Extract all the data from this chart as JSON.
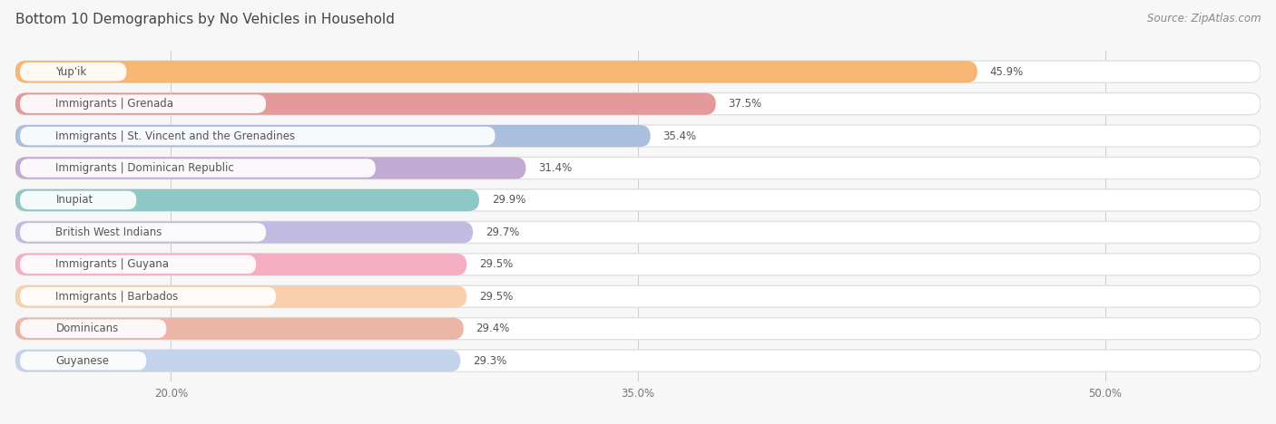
{
  "title": "Bottom 10 Demographics by No Vehicles in Household",
  "source": "Source: ZipAtlas.com",
  "categories": [
    "Yup'ik",
    "Immigrants | Grenada",
    "Immigrants | St. Vincent and the Grenadines",
    "Immigrants | Dominican Republic",
    "Inupiat",
    "British West Indians",
    "Immigrants | Guyana",
    "Immigrants | Barbados",
    "Dominicans",
    "Guyanese"
  ],
  "values": [
    45.9,
    37.5,
    35.4,
    31.4,
    29.9,
    29.7,
    29.5,
    29.5,
    29.4,
    29.3
  ],
  "bar_colors": [
    "#F5A95C",
    "#E08888",
    "#9AB4D8",
    "#B89CCC",
    "#7ABFBE",
    "#B8B0DC",
    "#F4A0B8",
    "#F8C89C",
    "#E8A898",
    "#B8CCE8"
  ],
  "xlim_min": 15.0,
  "xlim_max": 55.0,
  "xticks": [
    20.0,
    35.0,
    50.0
  ],
  "xticklabels": [
    "20.0%",
    "35.0%",
    "50.0%"
  ],
  "background_color": "#f7f7f7",
  "bar_bg_color": "#ffffff",
  "title_fontsize": 11,
  "source_fontsize": 8.5,
  "label_fontsize": 8.5,
  "value_fontsize": 8.5,
  "title_color": "#444444",
  "label_color": "#555555",
  "value_color": "#555555"
}
